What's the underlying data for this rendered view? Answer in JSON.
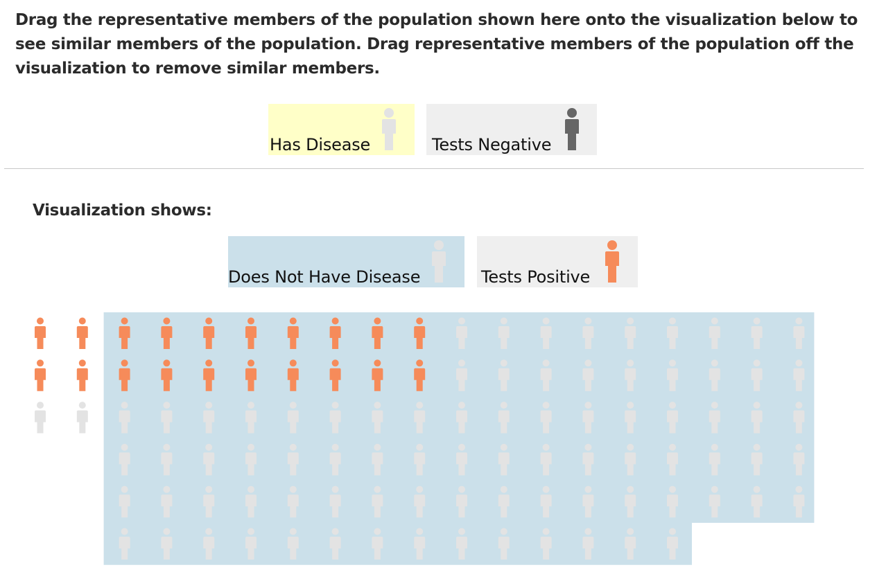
{
  "instructions": "Drag the representative members of the population shown here onto the visualization below to see similar members of the population. Drag representative members of the population off the visualization to remove similar members.",
  "population_chips": [
    {
      "label": "Has Disease",
      "background": "#ffffc8",
      "figure_color": "#e3e3e3",
      "icon": "person-icon"
    },
    {
      "label": "Tests Negative",
      "background": "#efefef",
      "figure_color": "#666666",
      "icon": "person-icon"
    }
  ],
  "visualization_heading": "Visualization shows:",
  "visualization_chips": [
    {
      "label": "Does Not Have Disease",
      "background": "#cbe0ea",
      "figure_color": "#e3e3e3",
      "icon": "person-icon"
    },
    {
      "label": "Tests Positive",
      "background": "#efefef",
      "figure_color": "#f68b5a",
      "icon": "person-icon"
    }
  ],
  "colors": {
    "tests_positive": "#f68b5a",
    "neutral_figure": "#e3e3e3",
    "tests_negative": "#666666",
    "does_not_have_disease_highlight": "#cbe0ea",
    "has_disease_highlight": "#ffffc8"
  },
  "population_display": {
    "outside_group": {
      "total": 6,
      "tests_positive": 4,
      "has_disease": "not shaded"
    },
    "highlighted_group": {
      "label": "Does Not Have Disease",
      "total": 99,
      "tests_positive": 16
    },
    "total_people": 105,
    "total_tests_positive": 20
  }
}
